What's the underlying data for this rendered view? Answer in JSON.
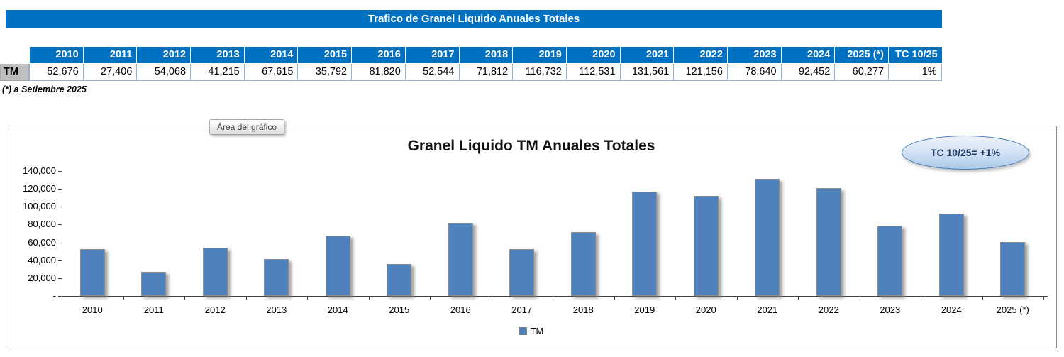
{
  "header": {
    "title": "Trafico de Granel Liquido Anuales Totales"
  },
  "table": {
    "row_label": "TM",
    "columns": [
      "2010",
      "2011",
      "2012",
      "2013",
      "2014",
      "2015",
      "2016",
      "2017",
      "2018",
      "2019",
      "2020",
      "2021",
      "2022",
      "2023",
      "2024",
      "2025 (*)",
      "TC 10/25"
    ],
    "values": [
      "52,676",
      "27,406",
      "54,068",
      "41,215",
      "67,615",
      "35,792",
      "81,820",
      "52,544",
      "71,812",
      "116,732",
      "112,531",
      "131,561",
      "121,156",
      "78,640",
      "92,452",
      "60,277",
      "1%"
    ]
  },
  "footnote": "(*) a Setiembre 2025",
  "chart": {
    "tooltip": "Área del gráfico",
    "bubble": "TC 10/25= +1%"
  },
  "chart_data": {
    "type": "bar",
    "title": "Granel Liquido TM Anuales Totales",
    "categories": [
      "2010",
      "2011",
      "2012",
      "2013",
      "2014",
      "2015",
      "2016",
      "2017",
      "2018",
      "2019",
      "2020",
      "2021",
      "2022",
      "2023",
      "2024",
      "2025 (*)"
    ],
    "series": [
      {
        "name": "TM",
        "values": [
          52676,
          27406,
          54068,
          41215,
          67615,
          35792,
          81820,
          52544,
          71812,
          116732,
          112531,
          131561,
          121156,
          78640,
          92452,
          60277
        ]
      }
    ],
    "xlabel": "",
    "ylabel": "",
    "ylim": [
      0,
      140000
    ],
    "ytick_step": 20000,
    "ytick_labels": [
      "-",
      "20,000",
      "40,000",
      "60,000",
      "80,000",
      "100,000",
      "120,000",
      "140,000"
    ],
    "legend_position": "bottom-center",
    "grid": false,
    "bar_color": "#4F81BD"
  },
  "colors": {
    "banner_blue": "#0070C0",
    "bar_blue": "#4F81BD",
    "row_label_gray": "#BFBFBF",
    "cell_border_blue": "#95B3D7"
  }
}
